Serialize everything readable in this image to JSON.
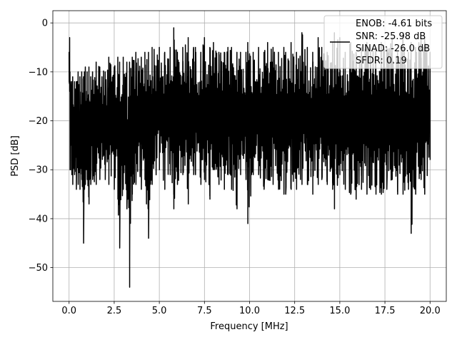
{
  "chart_data": {
    "type": "line",
    "xlabel": "Frequency [MHz]",
    "ylabel": "PSD [dB]",
    "xlim": [
      -0.9,
      20.9
    ],
    "ylim": [
      -56.9,
      2.5
    ],
    "xticks": [
      0.0,
      2.5,
      5.0,
      7.5,
      10.0,
      12.5,
      15.0,
      17.5,
      20.0
    ],
    "xtick_labels": [
      "0.0",
      "2.5",
      "5.0",
      "7.5",
      "10.0",
      "12.5",
      "15.0",
      "17.5",
      "20.0"
    ],
    "yticks": [
      0,
      -10,
      -20,
      -30,
      -40,
      -50
    ],
    "ytick_labels": [
      "0",
      "−10",
      "−20",
      "−30",
      "−40",
      "−50"
    ],
    "grid": true,
    "legend_position": "top-right",
    "series_color": "#000000",
    "legend_lines": [
      "ENOB: -4.61 bits",
      "SNR: -25.98 dB",
      "SINAD: -26.0 dB",
      "SFDR: 0.19"
    ],
    "series": [
      {
        "x": [
          0.0,
          0.03,
          0.05,
          0.08,
          0.1,
          0.15,
          0.2,
          0.3,
          0.4,
          0.5,
          0.6,
          0.7,
          0.8,
          0.85,
          0.9,
          1.0,
          1.1,
          1.2,
          1.3,
          1.5,
          1.7,
          2.0,
          2.2,
          2.5,
          2.7,
          2.8,
          3.0,
          3.2,
          3.35,
          3.5,
          3.7,
          4.0,
          4.2,
          4.4,
          4.6,
          5.0,
          5.3,
          5.6,
          5.8,
          6.0,
          6.3,
          6.6,
          6.9,
          7.0,
          7.3,
          7.5,
          7.8,
          8.0,
          8.3,
          8.6,
          8.8,
          9.0,
          9.3,
          9.5,
          9.8,
          9.9,
          10.2,
          10.5,
          10.8,
          11.0,
          11.3,
          11.6,
          11.9,
          12.0,
          12.3,
          12.6,
          12.9,
          13.2,
          13.5,
          13.8,
          14.0,
          14.3,
          14.6,
          14.7,
          15.0,
          15.3,
          15.6,
          15.9,
          16.2,
          16.5,
          16.7,
          17.0,
          17.3,
          17.6,
          17.9,
          18.2,
          18.5,
          18.8,
          18.95,
          19.2,
          19.5,
          19.7,
          20.0
        ],
        "y_max": [
          -6,
          -3,
          -10,
          -12,
          -13,
          -12,
          -11,
          -12,
          -12,
          -10,
          -11,
          -10,
          -11,
          -10,
          -9,
          -10,
          -9,
          -11,
          -10,
          -8,
          -9,
          -10,
          -7,
          -9,
          -7,
          -8,
          -7,
          -8,
          -8,
          -7,
          -6,
          -7,
          -6,
          -6,
          -5,
          -5,
          -6,
          -5,
          -1,
          -6,
          -5,
          -3,
          -5,
          -5,
          -6,
          -3,
          -5,
          -4,
          -6,
          -6,
          -5,
          -5,
          -6,
          -6,
          -6,
          -4,
          -6,
          -5,
          -6,
          -4,
          -5,
          -6,
          -5,
          -6,
          -4,
          -6,
          -2,
          -5,
          -6,
          -3,
          -5,
          -6,
          -4,
          -2,
          -3,
          -6,
          -4,
          -6,
          -5,
          -4,
          -6,
          -5,
          -4,
          -5,
          -3,
          -6,
          -2,
          -6,
          -4,
          -5,
          -3,
          -3,
          -6
        ],
        "y_min": [
          -12,
          -14,
          -30,
          -30,
          -25,
          -31,
          -33,
          -31,
          -34,
          -33,
          -34,
          -32,
          -45,
          -34,
          -33,
          -32,
          -37,
          -33,
          -32,
          -33,
          -32,
          -32,
          -33,
          -34,
          -36,
          -46,
          -34,
          -38,
          -54,
          -35,
          -33,
          -34,
          -32,
          -44,
          -33,
          -30,
          -34,
          -31,
          -38,
          -33,
          -31,
          -37,
          -31,
          -31,
          -33,
          -32,
          -36,
          -30,
          -33,
          -34,
          -31,
          -34,
          -38,
          -31,
          -32,
          -41,
          -31,
          -31,
          -34,
          -32,
          -33,
          -34,
          -35,
          -35,
          -34,
          -34,
          -33,
          -33,
          -35,
          -33,
          -32,
          -33,
          -34,
          -38,
          -31,
          -34,
          -35,
          -36,
          -34,
          -35,
          -34,
          -35,
          -35,
          -34,
          -32,
          -35,
          -35,
          -34,
          -43,
          -35,
          -32,
          -35,
          -28
        ]
      }
    ]
  }
}
